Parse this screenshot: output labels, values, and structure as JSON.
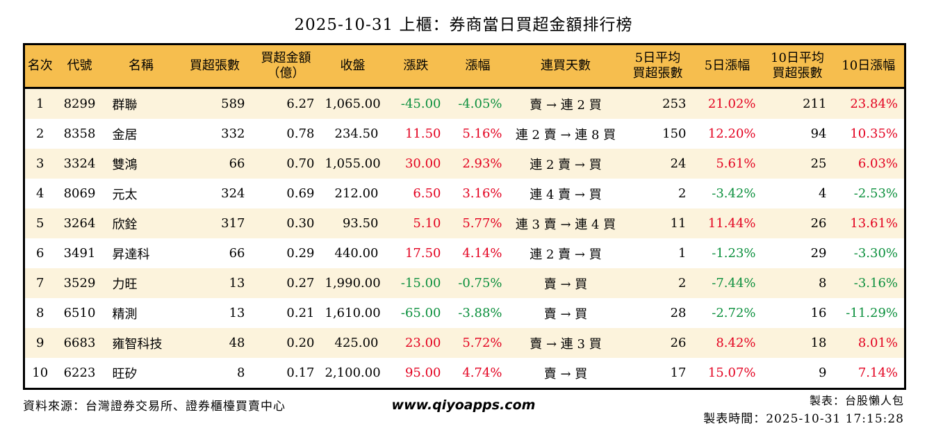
{
  "title": "2025-10-31 上櫃：券商當日買超金額排行榜",
  "colors": {
    "up": "#e3001f",
    "down": "#0a8f3c",
    "header_bg": "#f6be4e",
    "row_alt_bg": "#fcf3dc"
  },
  "chart_data": {
    "type": "table",
    "title": "2025-10-31 上櫃：券商當日買超金額排行榜",
    "columns": [
      {
        "key": "rank",
        "label": "名次",
        "align": "center"
      },
      {
        "key": "code",
        "label": "代號",
        "align": "center"
      },
      {
        "key": "name",
        "label": "名稱",
        "align": "left"
      },
      {
        "key": "buy_volume",
        "label": "買超張數",
        "align": "right"
      },
      {
        "key": "buy_amount",
        "label": "買超金額\n（億）",
        "align": "right"
      },
      {
        "key": "close",
        "label": "收盤",
        "align": "right"
      },
      {
        "key": "change",
        "label": "漲跌",
        "align": "right",
        "color_by_sign": true
      },
      {
        "key": "change_pct",
        "label": "漲幅",
        "align": "right",
        "color_by_sign": true
      },
      {
        "key": "streak",
        "label": "連買天數",
        "align": "center"
      },
      {
        "key": "avg5",
        "label": "5日平均\n買超張數",
        "align": "right"
      },
      {
        "key": "pct5",
        "label": "5日漲幅",
        "align": "right",
        "color_by_sign": true
      },
      {
        "key": "avg10",
        "label": "10日平均\n買超張數",
        "align": "right"
      },
      {
        "key": "pct10",
        "label": "10日漲幅",
        "align": "right",
        "color_by_sign": true
      }
    ],
    "rows": [
      {
        "rank": "1",
        "code": "8299",
        "name": "群聯",
        "buy_volume": "589",
        "buy_amount": "6.27",
        "close": "1,065.00",
        "change": "-45.00",
        "change_pct": "-4.05%",
        "streak": "賣 → 連 2 買",
        "avg5": "253",
        "pct5": "21.02%",
        "avg10": "211",
        "pct10": "23.84%"
      },
      {
        "rank": "2",
        "code": "8358",
        "name": "金居",
        "buy_volume": "332",
        "buy_amount": "0.78",
        "close": "234.50",
        "change": "11.50",
        "change_pct": "5.16%",
        "streak": "連 2 賣 → 連 8 買",
        "avg5": "150",
        "pct5": "12.20%",
        "avg10": "94",
        "pct10": "10.35%"
      },
      {
        "rank": "3",
        "code": "3324",
        "name": "雙鴻",
        "buy_volume": "66",
        "buy_amount": "0.70",
        "close": "1,055.00",
        "change": "30.00",
        "change_pct": "2.93%",
        "streak": "連 2 賣 → 買",
        "avg5": "24",
        "pct5": "5.61%",
        "avg10": "25",
        "pct10": "6.03%"
      },
      {
        "rank": "4",
        "code": "8069",
        "name": "元太",
        "buy_volume": "324",
        "buy_amount": "0.69",
        "close": "212.00",
        "change": "6.50",
        "change_pct": "3.16%",
        "streak": "連 4 賣 → 買",
        "avg5": "2",
        "pct5": "-3.42%",
        "avg10": "4",
        "pct10": "-2.53%"
      },
      {
        "rank": "5",
        "code": "3264",
        "name": "欣銓",
        "buy_volume": "317",
        "buy_amount": "0.30",
        "close": "93.50",
        "change": "5.10",
        "change_pct": "5.77%",
        "streak": "連 3 賣 → 連 4 買",
        "avg5": "11",
        "pct5": "11.44%",
        "avg10": "26",
        "pct10": "13.61%"
      },
      {
        "rank": "6",
        "code": "3491",
        "name": "昇達科",
        "buy_volume": "66",
        "buy_amount": "0.29",
        "close": "440.00",
        "change": "17.50",
        "change_pct": "4.14%",
        "streak": "連 2 賣 → 買",
        "avg5": "1",
        "pct5": "-1.23%",
        "avg10": "29",
        "pct10": "-3.30%"
      },
      {
        "rank": "7",
        "code": "3529",
        "name": "力旺",
        "buy_volume": "13",
        "buy_amount": "0.27",
        "close": "1,990.00",
        "change": "-15.00",
        "change_pct": "-0.75%",
        "streak": "賣 → 買",
        "avg5": "2",
        "pct5": "-7.44%",
        "avg10": "8",
        "pct10": "-3.16%"
      },
      {
        "rank": "8",
        "code": "6510",
        "name": "精測",
        "buy_volume": "13",
        "buy_amount": "0.21",
        "close": "1,610.00",
        "change": "-65.00",
        "change_pct": "-3.88%",
        "streak": "賣 → 買",
        "avg5": "28",
        "pct5": "-2.72%",
        "avg10": "16",
        "pct10": "-11.29%"
      },
      {
        "rank": "9",
        "code": "6683",
        "name": "雍智科技",
        "buy_volume": "48",
        "buy_amount": "0.20",
        "close": "425.00",
        "change": "23.00",
        "change_pct": "5.72%",
        "streak": "賣 → 連 3 買",
        "avg5": "26",
        "pct5": "8.42%",
        "avg10": "18",
        "pct10": "8.01%"
      },
      {
        "rank": "10",
        "code": "6223",
        "name": "旺矽",
        "buy_volume": "8",
        "buy_amount": "0.17",
        "close": "2,100.00",
        "change": "95.00",
        "change_pct": "4.74%",
        "streak": "賣 → 買",
        "avg5": "17",
        "pct5": "15.07%",
        "avg10": "9",
        "pct10": "7.14%"
      }
    ]
  },
  "footer": {
    "source": "資料來源：台灣證券交易所、證券櫃檯買賣中心",
    "website": "www.qiyoapps.com",
    "maker": "製表：台股懶人包",
    "made_time": "製表時間：2025-10-31 17:15:28"
  }
}
